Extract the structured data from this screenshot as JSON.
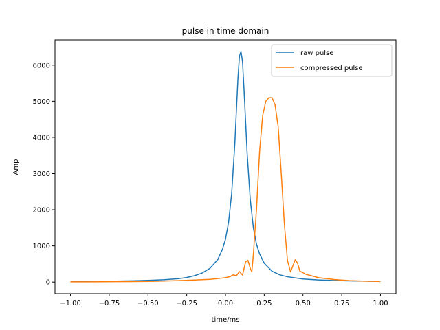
{
  "chart_data": {
    "type": "line",
    "title": "pulse in time domain",
    "xlabel": "time/ms",
    "ylabel": "Amp",
    "xlim": [
      -1.1,
      1.1
    ],
    "ylim": [
      -320,
      6700
    ],
    "xticks": [
      -1.0,
      -0.75,
      -0.5,
      -0.25,
      0.0,
      0.25,
      0.5,
      0.75,
      1.0
    ],
    "xtick_labels": [
      "−1.00",
      "−0.75",
      "−0.50",
      "−0.25",
      "0.00",
      "0.25",
      "0.50",
      "0.75",
      "1.00"
    ],
    "yticks": [
      0,
      1000,
      2000,
      3000,
      4000,
      5000,
      6000
    ],
    "ytick_labels": [
      "0",
      "1000",
      "2000",
      "3000",
      "4000",
      "5000",
      "6000"
    ],
    "grid": false,
    "legend_position": "top-right",
    "series": [
      {
        "name": "raw pulse",
        "color": "#1f77b4",
        "x": [
          -1.0,
          -0.9,
          -0.8,
          -0.7,
          -0.6,
          -0.5,
          -0.4,
          -0.3,
          -0.25,
          -0.2,
          -0.15,
          -0.1,
          -0.05,
          -0.02,
          0.0,
          0.02,
          0.04,
          0.06,
          0.08,
          0.09,
          0.1,
          0.11,
          0.12,
          0.14,
          0.16,
          0.18,
          0.2,
          0.22,
          0.25,
          0.3,
          0.35,
          0.4,
          0.5,
          0.6,
          0.7,
          0.8,
          0.9,
          1.0
        ],
        "y": [
          15,
          18,
          22,
          27,
          34,
          45,
          62,
          95,
          125,
          175,
          250,
          380,
          620,
          900,
          1180,
          1650,
          2450,
          3800,
          5600,
          6250,
          6380,
          6100,
          5300,
          3550,
          2280,
          1500,
          1050,
          780,
          520,
          300,
          200,
          145,
          85,
          58,
          42,
          32,
          25,
          20
        ]
      },
      {
        "name": "compressed pulse",
        "color": "#ff7f0e",
        "x": [
          -1.0,
          -0.8,
          -0.6,
          -0.5,
          -0.4,
          -0.3,
          -0.2,
          -0.1,
          -0.05,
          0.0,
          0.03,
          0.05,
          0.07,
          0.09,
          0.11,
          0.13,
          0.145,
          0.16,
          0.17,
          0.18,
          0.2,
          0.22,
          0.24,
          0.26,
          0.28,
          0.3,
          0.32,
          0.34,
          0.36,
          0.38,
          0.4,
          0.42,
          0.435,
          0.45,
          0.465,
          0.48,
          0.5,
          0.52,
          0.55,
          0.6,
          0.7,
          0.8,
          0.9,
          1.0
        ],
        "y": [
          5,
          8,
          12,
          18,
          28,
          40,
          55,
          75,
          95,
          120,
          150,
          200,
          170,
          290,
          190,
          560,
          600,
          380,
          280,
          760,
          2000,
          3600,
          4600,
          5000,
          5100,
          5100,
          4900,
          4300,
          3000,
          1600,
          600,
          280,
          450,
          620,
          520,
          300,
          260,
          210,
          180,
          120,
          70,
          40,
          25,
          15
        ]
      }
    ]
  }
}
